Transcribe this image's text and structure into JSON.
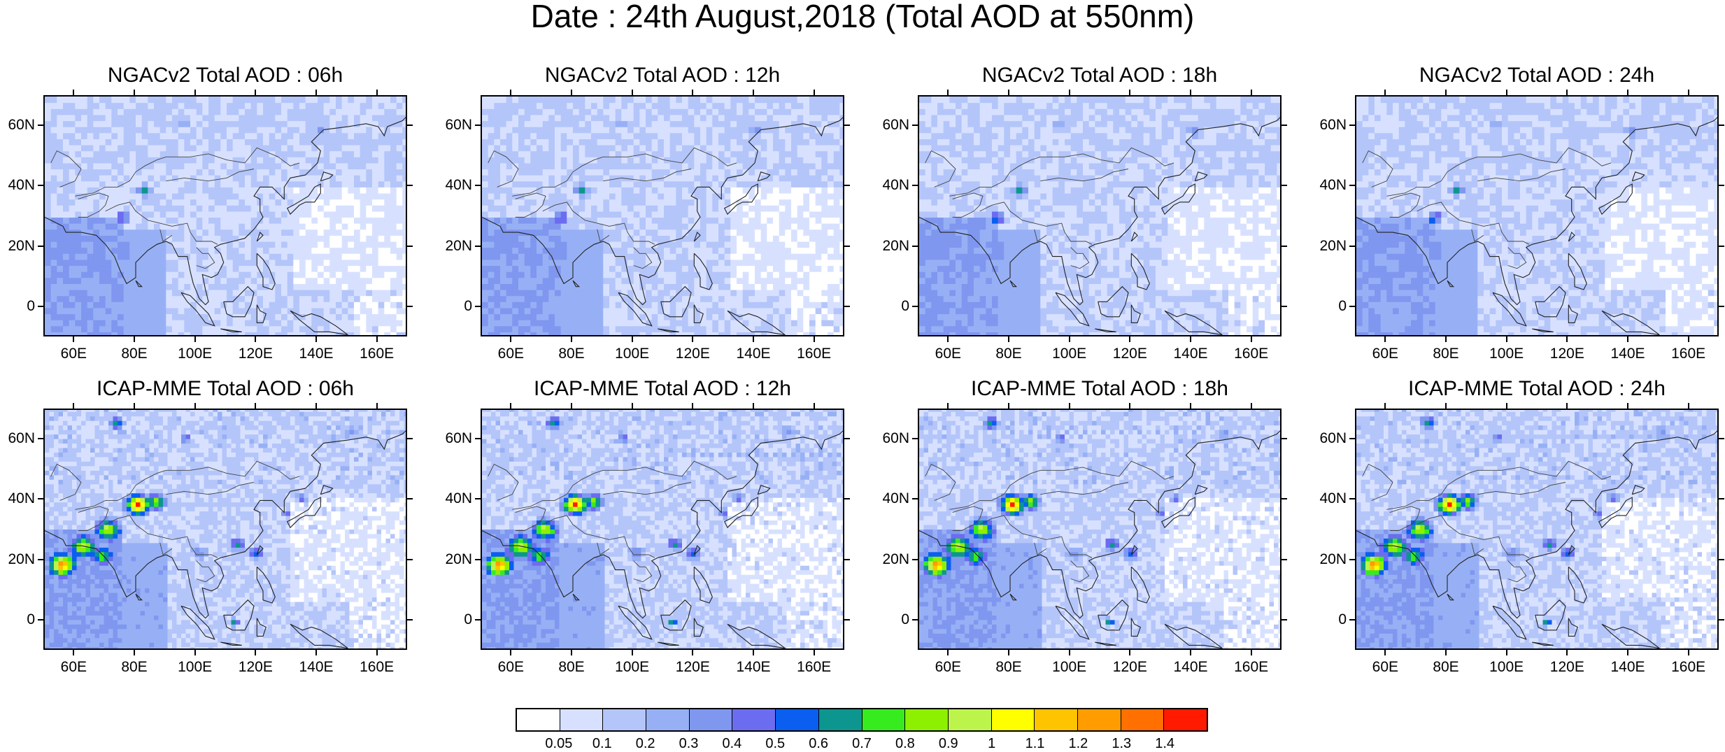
{
  "title": "Date : 24th August,2018 (Total AOD at 550nm)",
  "panels": [
    {
      "title": "NGACv2 Total AOD : 06h",
      "model": "NGACv2",
      "hour": "06h"
    },
    {
      "title": "NGACv2 Total AOD : 12h",
      "model": "NGACv2",
      "hour": "12h"
    },
    {
      "title": "NGACv2 Total AOD : 18h",
      "model": "NGACv2",
      "hour": "18h"
    },
    {
      "title": "NGACv2 Total AOD : 24h",
      "model": "NGACv2",
      "hour": "24h"
    },
    {
      "title": "ICAP-MME Total AOD : 06h",
      "model": "ICAP-MME",
      "hour": "06h"
    },
    {
      "title": "ICAP-MME Total AOD : 12h",
      "model": "ICAP-MME",
      "hour": "12h"
    },
    {
      "title": "ICAP-MME Total AOD : 18h",
      "model": "ICAP-MME",
      "hour": "18h"
    },
    {
      "title": "ICAP-MME Total AOD : 24h",
      "model": "ICAP-MME",
      "hour": "24h"
    }
  ],
  "lat_labels": [
    "60N",
    "40N",
    "20N",
    "0"
  ],
  "lon_labels": [
    "60E",
    "80E",
    "100E",
    "120E",
    "140E",
    "160E"
  ],
  "colorbar": {
    "labels": [
      "0.05",
      "0.1",
      "0.2",
      "0.3",
      "0.4",
      "0.5",
      "0.6",
      "0.7",
      "0.8",
      "0.9",
      "1",
      "1.1",
      "1.2",
      "1.3",
      "1.4"
    ],
    "colors": [
      "#ffffff",
      "#d7e1ff",
      "#b4c5fa",
      "#97b0f5",
      "#7f97ef",
      "#6c6cf0",
      "#0a5ef0",
      "#0d968f",
      "#37ec1e",
      "#8df000",
      "#bdf44c",
      "#ffff00",
      "#ffc400",
      "#ff9c00",
      "#ff7000",
      "#ff1a00"
    ]
  }
}
